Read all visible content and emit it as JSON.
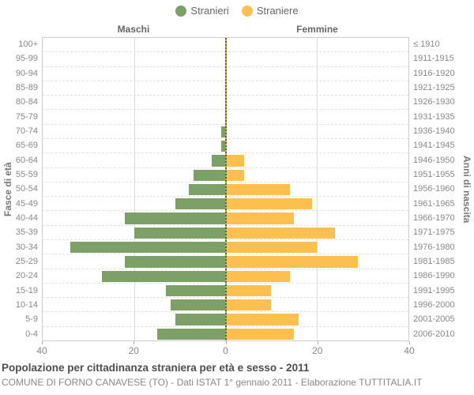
{
  "legend": {
    "items": [
      {
        "label": "Stranieri",
        "color": "#7d9f68"
      },
      {
        "label": "Straniere",
        "color": "#fdc04f"
      }
    ]
  },
  "headers": {
    "left": "Maschi",
    "right": "Femmine"
  },
  "axis": {
    "left_title": "Fasce di età",
    "right_title": "Anni di nascita",
    "x_tick_labels": [
      "40",
      "20",
      "0",
      "20",
      "40"
    ]
  },
  "chart_data": {
    "type": "bar",
    "variant": "population_pyramid",
    "title": "Popolazione per cittadinanza straniera per età e sesso - 2011",
    "categories": [
      "100+",
      "95-99",
      "90-94",
      "85-89",
      "80-84",
      "75-79",
      "70-74",
      "65-69",
      "60-64",
      "55-59",
      "50-54",
      "45-49",
      "40-44",
      "35-39",
      "30-34",
      "25-29",
      "20-24",
      "15-19",
      "10-14",
      "5-9",
      "0-4"
    ],
    "birth_year_labels": [
      "≤ 1910",
      "1911-1915",
      "1916-1920",
      "1921-1925",
      "1926-1930",
      "1931-1935",
      "1936-1940",
      "1941-1945",
      "1946-1950",
      "1951-1955",
      "1956-1960",
      "1961-1965",
      "1966-1970",
      "1971-1975",
      "1976-1980",
      "1981-1985",
      "1986-1990",
      "1991-1995",
      "1996-2000",
      "2001-2005",
      "2006-2010"
    ],
    "series": [
      {
        "name": "Stranieri",
        "sex": "Maschi",
        "side": "left",
        "color": "#7d9f68",
        "values": [
          0,
          0,
          0,
          0,
          0,
          0,
          1,
          1,
          3,
          7,
          8,
          11,
          22,
          20,
          34,
          22,
          27,
          13,
          12,
          11,
          15
        ]
      },
      {
        "name": "Straniere",
        "sex": "Femmine",
        "side": "right",
        "color": "#fdc04f",
        "values": [
          0,
          0,
          0,
          0,
          0,
          0,
          0,
          0,
          4,
          4,
          14,
          19,
          15,
          24,
          20,
          29,
          14,
          10,
          10,
          16,
          15
        ]
      }
    ],
    "xlim": [
      0,
      40
    ],
    "x_ticks": [
      40,
      20,
      0,
      20,
      40
    ],
    "grid": true,
    "legend_position": "top"
  },
  "footer": {
    "title": "Popolazione per cittadinanza straniera per età e sesso - 2011",
    "subtitle": "COMUNE DI FORNO CANAVESE (TO) - Dati ISTAT 1° gennaio 2011 - Elaborazione TUTTITALIA.IT"
  }
}
